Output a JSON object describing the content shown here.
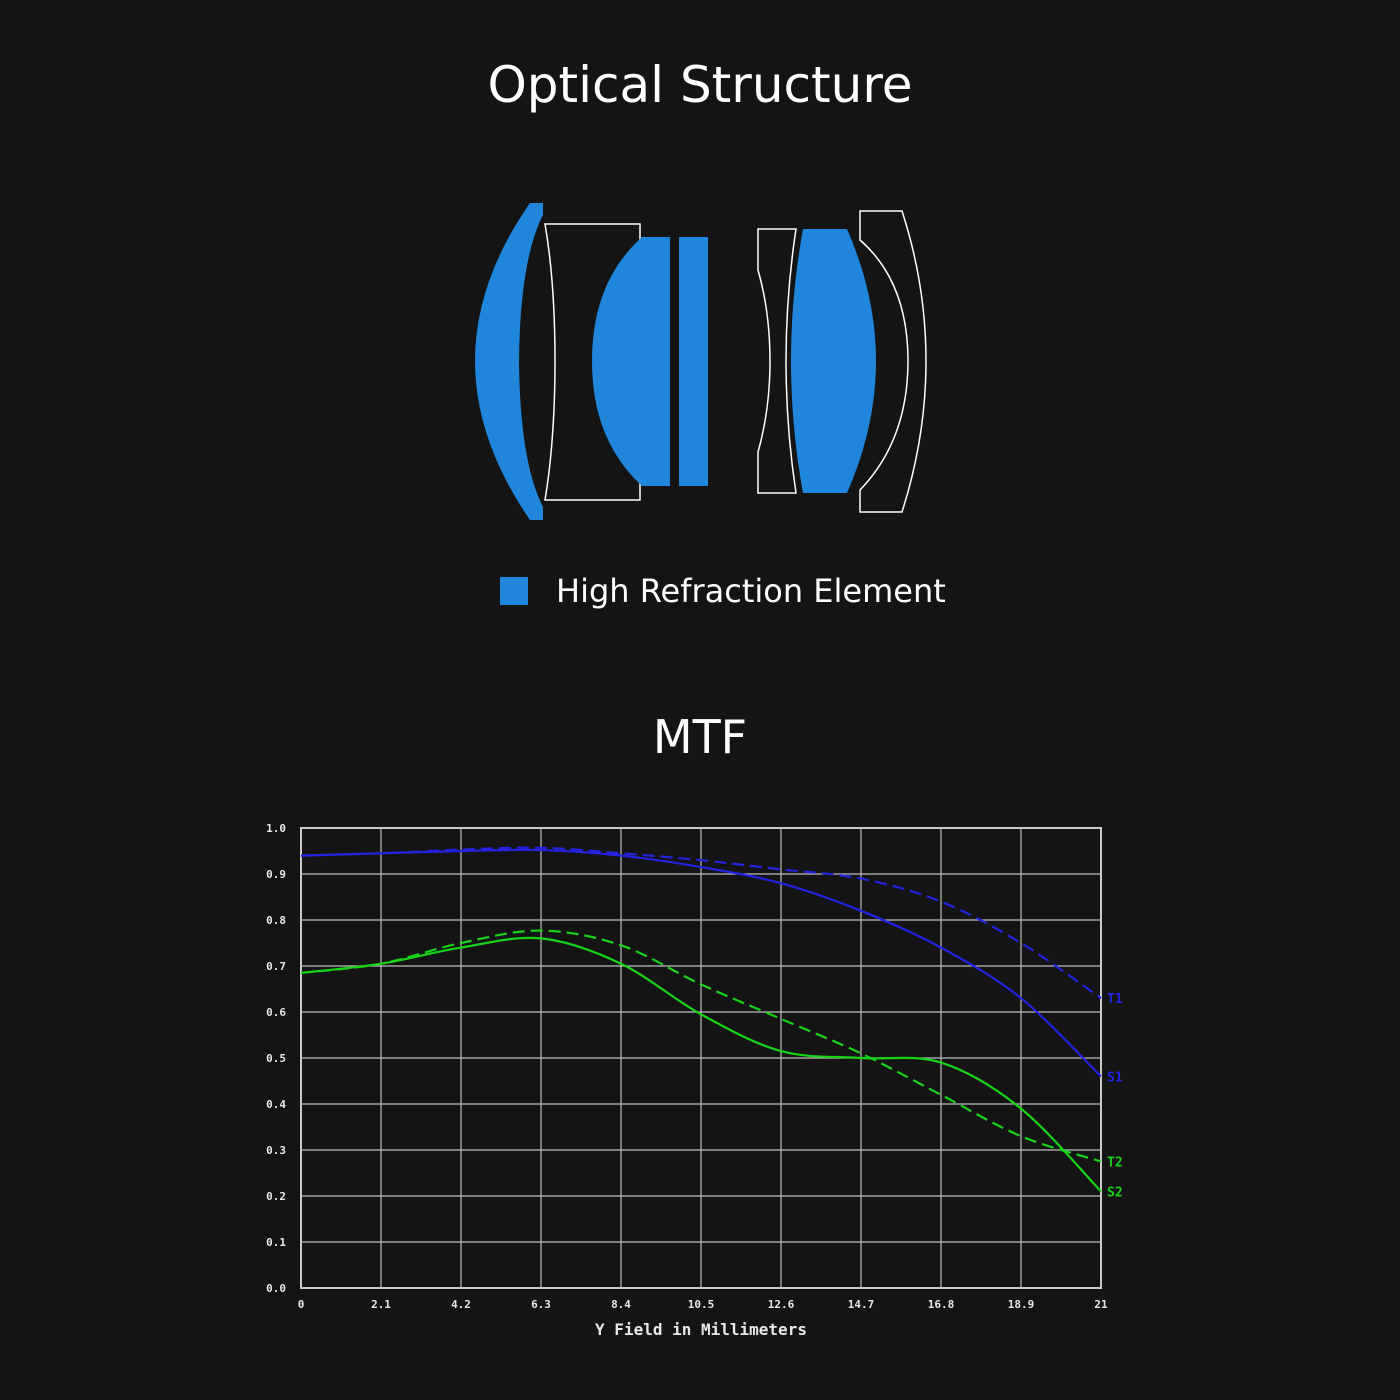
{
  "structure": {
    "title": "Optical Structure",
    "legend_label": "High Refraction Element",
    "highlight_color": "#1f86dc",
    "outline_color": "#ffffff"
  },
  "mtf": {
    "title": "MTF"
  },
  "chart_data": {
    "type": "line",
    "title": "",
    "xlabel": "Y Field in Millimeters",
    "ylabel": "",
    "xlim": [
      0,
      21
    ],
    "ylim": [
      0,
      1
    ],
    "grid": true,
    "x_ticks": [
      "0",
      "2.1",
      "4.2",
      "6.3",
      "8.4",
      "10.5",
      "12.6",
      "14.7",
      "16.8",
      "18.9",
      "21"
    ],
    "y_ticks": [
      "0.0",
      "0.1",
      "0.2",
      "0.3",
      "0.4",
      "0.5",
      "0.6",
      "0.7",
      "0.8",
      "0.9",
      "1.0"
    ],
    "x": [
      0,
      2.1,
      4.2,
      6.3,
      8.4,
      10.5,
      12.6,
      14.7,
      16.8,
      18.9,
      21
    ],
    "series": [
      {
        "name": "T1",
        "color": "#2424e0",
        "dashed": true,
        "values": [
          0.94,
          0.945,
          0.953,
          0.957,
          0.945,
          0.93,
          0.91,
          0.89,
          0.84,
          0.75,
          0.63
        ]
      },
      {
        "name": "S1",
        "color": "#2424e0",
        "dashed": false,
        "values": [
          0.94,
          0.945,
          0.95,
          0.952,
          0.94,
          0.915,
          0.88,
          0.82,
          0.74,
          0.63,
          0.46
        ]
      },
      {
        "name": "T2",
        "color": "#18d218",
        "dashed": true,
        "values": [
          0.685,
          0.705,
          0.75,
          0.777,
          0.745,
          0.66,
          0.585,
          0.51,
          0.42,
          0.33,
          0.275
        ]
      },
      {
        "name": "S2",
        "color": "#18d218",
        "dashed": false,
        "values": [
          0.685,
          0.705,
          0.74,
          0.76,
          0.705,
          0.595,
          0.515,
          0.5,
          0.49,
          0.39,
          0.21
        ]
      }
    ]
  }
}
